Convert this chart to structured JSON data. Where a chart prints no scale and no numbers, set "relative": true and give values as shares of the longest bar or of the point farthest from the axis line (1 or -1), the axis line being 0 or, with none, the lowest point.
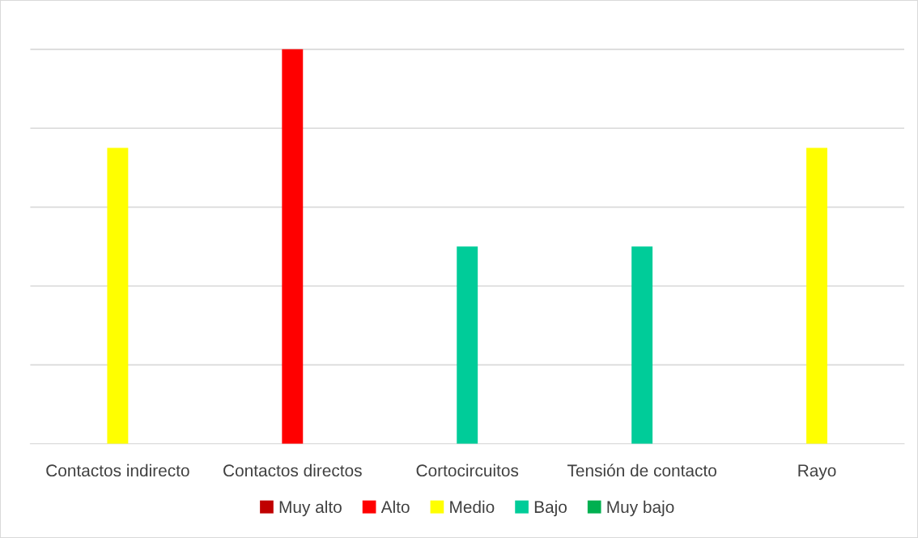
{
  "chart_data": {
    "type": "bar",
    "relative": true,
    "grid": "y",
    "legend": "bottom",
    "categories": [
      "Contactos indirecto",
      "Contactos directos",
      "Cortocircuitos",
      "Tensión de contacto",
      "Rayo"
    ],
    "series": [
      {
        "name": "Muy alto",
        "color": "#c00000",
        "values": [
          null,
          null,
          null,
          null,
          null
        ]
      },
      {
        "name": "Alto",
        "color": "#ff0000",
        "values": [
          null,
          1,
          null,
          null,
          null
        ]
      },
      {
        "name": "Medio",
        "color": "#ffff00",
        "values": [
          0.75,
          null,
          null,
          null,
          0.75
        ]
      },
      {
        "name": "Bajo",
        "color": "#00cc99",
        "values": [
          null,
          null,
          0.5,
          0.5,
          null
        ]
      },
      {
        "name": "Muy bajo",
        "color": "#00b050",
        "values": [
          null,
          null,
          null,
          null,
          null
        ]
      }
    ]
  }
}
